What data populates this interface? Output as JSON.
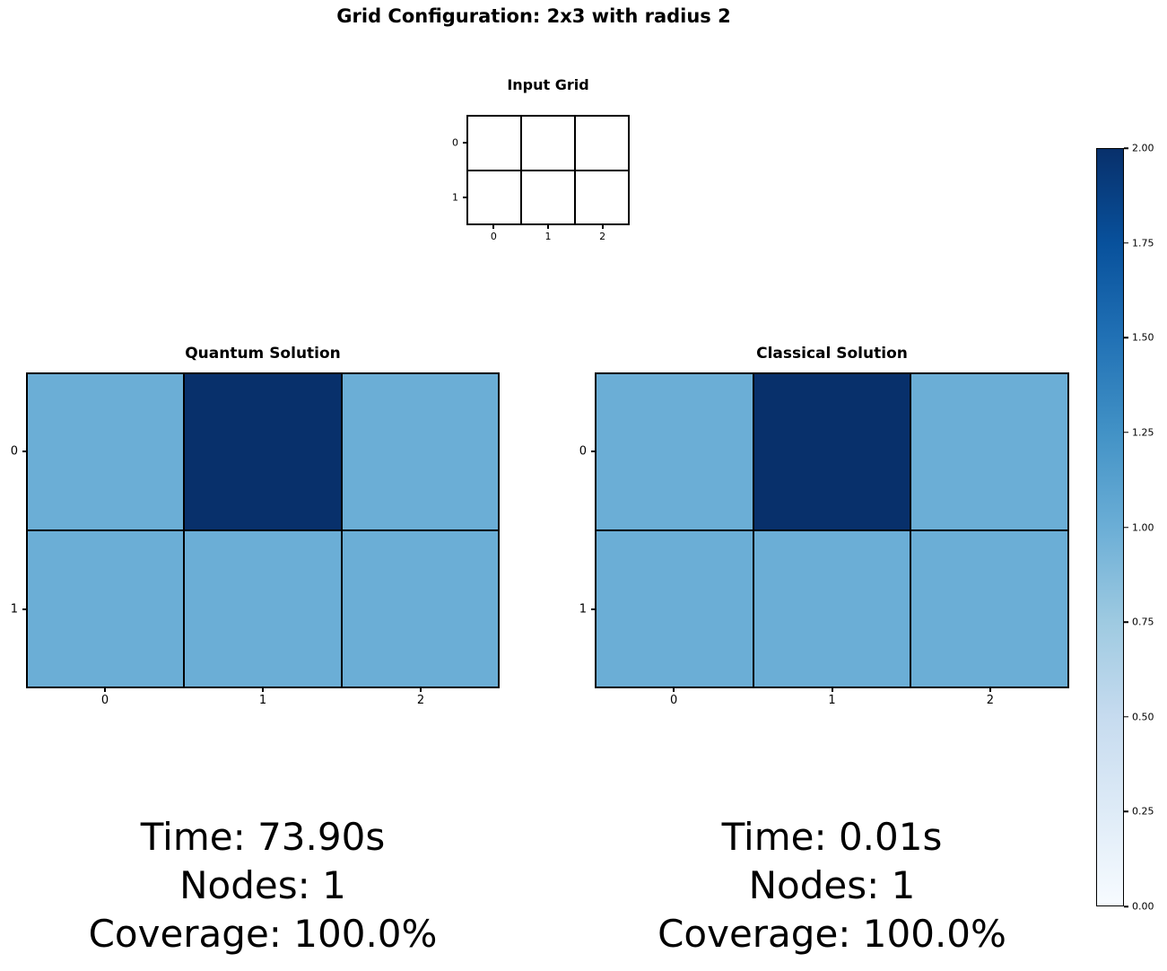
{
  "figure": {
    "title": "Grid Configuration: 2x3 with radius 2",
    "background": "#ffffff"
  },
  "palette": {
    "cell_value_0": "#ffffff",
    "cell_value_1": "#6baed6",
    "cell_value_2": "#08306b",
    "grid_line": "#000000",
    "colormap_blues_low_to_high": [
      "#f7fbff",
      "#deebf7",
      "#c6dbef",
      "#9ecae1",
      "#6baed6",
      "#4292c6",
      "#2171b5",
      "#08519c",
      "#08306b"
    ]
  },
  "chart_data": [
    {
      "type": "heatmap",
      "title": "Input Grid",
      "x_ticks": [
        "0",
        "1",
        "2"
      ],
      "y_ticks": [
        "0",
        "1"
      ],
      "values": [
        [
          0,
          0,
          0
        ],
        [
          0,
          0,
          0
        ]
      ]
    },
    {
      "type": "heatmap",
      "title": "Quantum Solution",
      "x_ticks": [
        "0",
        "1",
        "2"
      ],
      "y_ticks": [
        "0",
        "1"
      ],
      "values": [
        [
          1,
          2,
          1
        ],
        [
          1,
          1,
          1
        ]
      ],
      "footer": [
        "Time: 73.90s",
        "Nodes: 1",
        "Coverage: 100.0%"
      ]
    },
    {
      "type": "heatmap",
      "title": "Classical Solution",
      "x_ticks": [
        "0",
        "1",
        "2"
      ],
      "y_ticks": [
        "0",
        "1"
      ],
      "values": [
        [
          1,
          2,
          1
        ],
        [
          1,
          1,
          1
        ]
      ],
      "footer": [
        "Time: 0.01s",
        "Nodes: 1",
        "Coverage: 100.0%"
      ]
    }
  ],
  "colorbar": {
    "min": 0.0,
    "max": 2.0,
    "tick_labels": [
      "2.00",
      "1.75",
      "1.50",
      "1.25",
      "1.00",
      "0.75",
      "0.50",
      "0.25",
      "0.00"
    ]
  }
}
